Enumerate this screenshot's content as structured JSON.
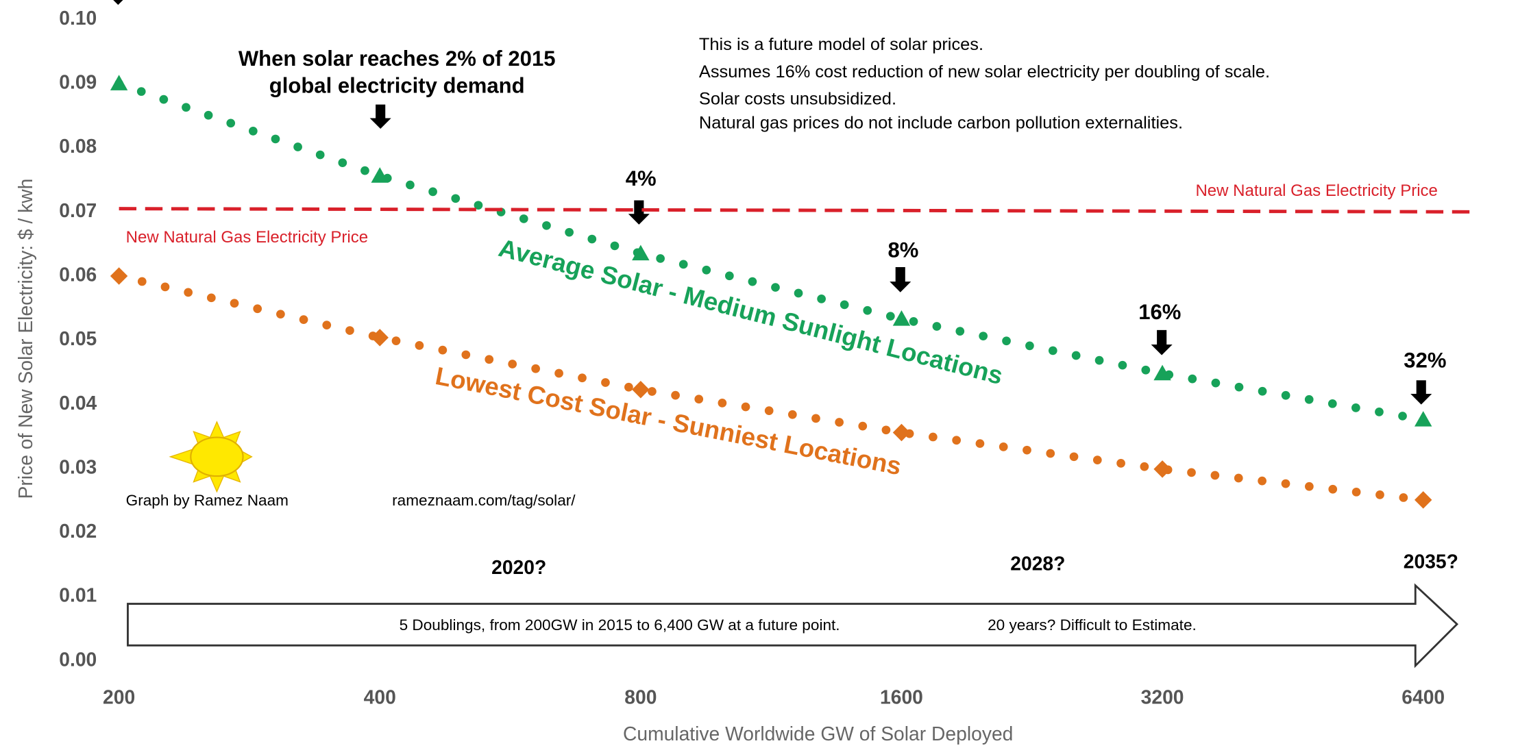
{
  "chart_data": {
    "type": "scatter",
    "x_label": "Cumulative Worldwide GW of Solar Deployed",
    "y_label": "Price of New Solar Electricity: $ / kwh",
    "xscale": "log2",
    "xlim": [
      191,
      7760
    ],
    "ylim": [
      0,
      0.1
    ],
    "xticks": [
      200,
      400,
      800,
      1600,
      3200,
      6400
    ],
    "yticks": [
      {
        "value": 0,
        "label": "0.00"
      },
      {
        "value": 0.01,
        "label": "0.01"
      },
      {
        "value": 0.02,
        "label": "0.02"
      },
      {
        "value": 0.03,
        "label": "0.03"
      },
      {
        "value": 0.04,
        "label": "0.04"
      },
      {
        "value": 0.05,
        "label": "0.05"
      },
      {
        "value": 0.06,
        "label": "0.06"
      },
      {
        "value": 0.07,
        "label": "0.07"
      },
      {
        "value": 0.08,
        "label": "0.08"
      },
      {
        "value": 0.09,
        "label": "0.09"
      },
      {
        "value": 0.1,
        "label": "0.10"
      }
    ],
    "series": [
      {
        "name": "Average Solar - Medium Sunlight Locations",
        "color": "#17a259",
        "marker": "triangle",
        "x": [
          200,
          400,
          800,
          1600,
          3200,
          6400
        ],
        "values": [
          0.09,
          0.0756,
          0.0635,
          0.0533,
          0.0448,
          0.0376
        ]
      },
      {
        "name": "Lowest Cost Solar - Sunniest Locations",
        "color": "#e0721c",
        "marker": "diamond",
        "x": [
          200,
          400,
          800,
          1600,
          3200,
          6400
        ],
        "values": [
          0.06,
          0.0504,
          0.0423,
          0.0356,
          0.0299,
          0.0251
        ]
      },
      {
        "name": "New Natural Gas Electricity Price",
        "color": "#d9202a",
        "style": "dashed",
        "x": [
          200,
          7270
        ],
        "values": [
          0.0705,
          0.07
        ]
      }
    ],
    "annotations": [
      "When solar reaches 2% of 2015",
      "global electricity demand",
      "4%",
      "8%",
      "16%",
      "32%",
      "This is a future model of solar prices.",
      "Assumes 16% cost reduction of new solar electricity per doubling of scale.",
      "Solar costs unsubsidized.",
      "Natural gas prices do not include carbon pollution externalities.",
      "New Natural Gas Electricity Price",
      "Graph by Ramez Naam",
      "rameznaam.com/tag/solar/",
      "2020?",
      "2028?",
      "2035?",
      "5 Doublings, from 200GW in 2015 to 6,400 GW at a future point.",
      "20 years? Difficult to Estimate."
    ]
  }
}
